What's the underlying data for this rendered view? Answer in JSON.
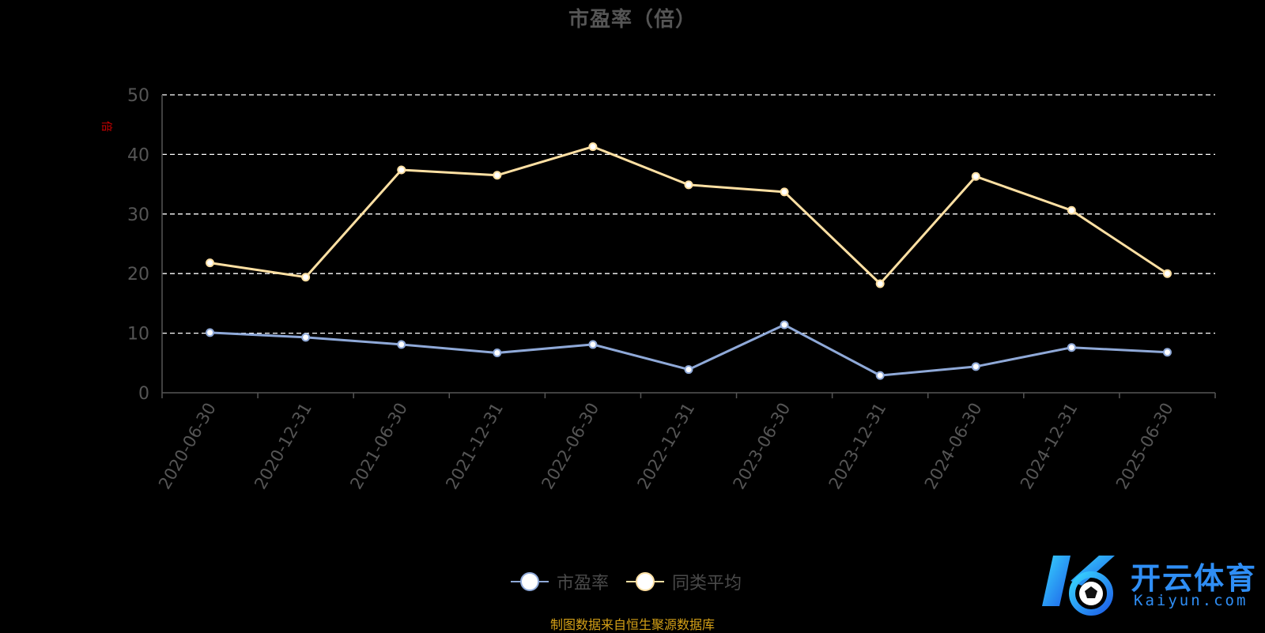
{
  "chart_data": {
    "type": "line",
    "title": "市盈率（倍）",
    "ylabel": "倍",
    "categories": [
      "2020-06-30",
      "2020-12-31",
      "2021-06-30",
      "2021-12-31",
      "2022-06-30",
      "2022-12-31",
      "2023-06-30",
      "2023-12-31",
      "2024-06-30",
      "2024-12-31",
      "2025-06-30"
    ],
    "ylim": [
      0,
      50
    ],
    "yticks": [
      0,
      10,
      20,
      30,
      40,
      50
    ],
    "grid": true,
    "legend_position": "bottom",
    "series": [
      {
        "name": "市盈率",
        "color": "#8fa9d8",
        "values": [
          10.1,
          9.3,
          8.1,
          6.7,
          8.1,
          3.9,
          11.4,
          2.9,
          4.4,
          7.6,
          6.8
        ]
      },
      {
        "name": "同类平均",
        "color": "#ffe0a3",
        "values": [
          21.8,
          19.4,
          37.4,
          36.5,
          41.3,
          34.9,
          33.7,
          18.3,
          36.3,
          30.6,
          20.0
        ]
      }
    ]
  },
  "source_text": "制图数据来自恒生聚源数据库",
  "logo": {
    "name": "开云体育",
    "url_text": "Kaiyun.com"
  }
}
